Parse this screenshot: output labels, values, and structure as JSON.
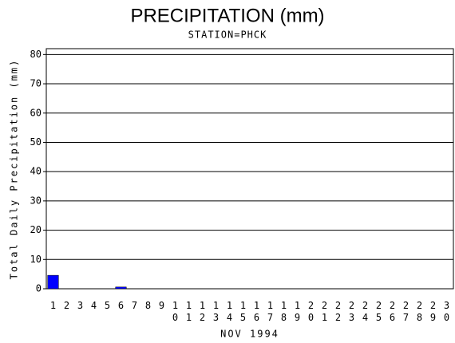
{
  "chart_data": {
    "type": "bar",
    "title": "PRECIPITATION (mm)",
    "subtitle": "STATION=PHCK",
    "y_label": "Total Daily Precipitation (mm)",
    "x_label": "NOV 1994",
    "categories": [
      "1",
      "2",
      "3",
      "4",
      "5",
      "6",
      "7",
      "8",
      "9",
      "10",
      "11",
      "12",
      "13",
      "14",
      "15",
      "16",
      "17",
      "18",
      "19",
      "20",
      "21",
      "22",
      "23",
      "24",
      "25",
      "26",
      "27",
      "28",
      "29",
      "30"
    ],
    "values": [
      4.6,
      0,
      0,
      0,
      0,
      0.6,
      0,
      0,
      0,
      0,
      0,
      0,
      0,
      0,
      0,
      0,
      0,
      0,
      0,
      0,
      0,
      0,
      0,
      0,
      0,
      0,
      0,
      0,
      0,
      0
    ],
    "color": "#0000ff",
    "ylim": [
      0,
      82
    ],
    "yticks": [
      0,
      10,
      20,
      30,
      40,
      50,
      60,
      70,
      80
    ],
    "grid": true
  }
}
